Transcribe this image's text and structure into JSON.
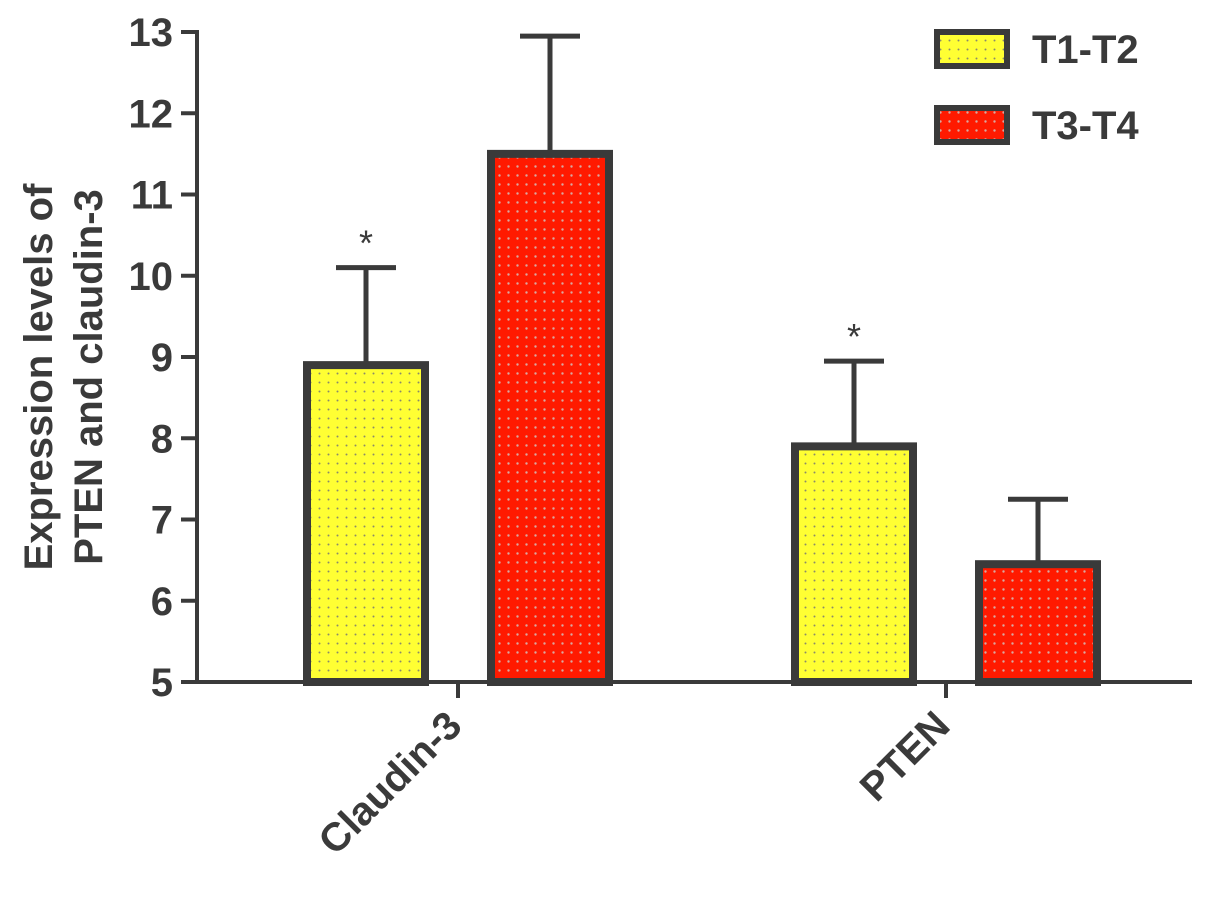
{
  "colors": {
    "axis": "#3a3a3a",
    "t1t2_fill": "#ffff33",
    "t3t4_fill": "#ff1a00"
  },
  "chart_data": {
    "type": "bar",
    "title": "",
    "xlabel": "",
    "ylabel": "Expression levels of PTEN and claudin-3",
    "ylabel_lines": [
      "Expression levels of",
      "PTEN and claudin-3"
    ],
    "categories": [
      "Claudin-3",
      "PTEN"
    ],
    "series": [
      {
        "name": "T1-T2",
        "values": [
          8.9,
          7.9
        ],
        "errors": [
          1.2,
          1.05
        ],
        "significance": [
          "*",
          "*"
        ]
      },
      {
        "name": "T3-T4",
        "values": [
          11.5,
          6.45
        ],
        "errors": [
          1.45,
          0.8
        ],
        "significance": [
          "",
          ""
        ]
      }
    ],
    "ylim": [
      5,
      13
    ],
    "yticks": [
      5,
      6,
      7,
      8,
      9,
      10,
      11,
      12,
      13
    ],
    "grid": false,
    "legend_position": "top-right",
    "error_bars": "upper"
  }
}
